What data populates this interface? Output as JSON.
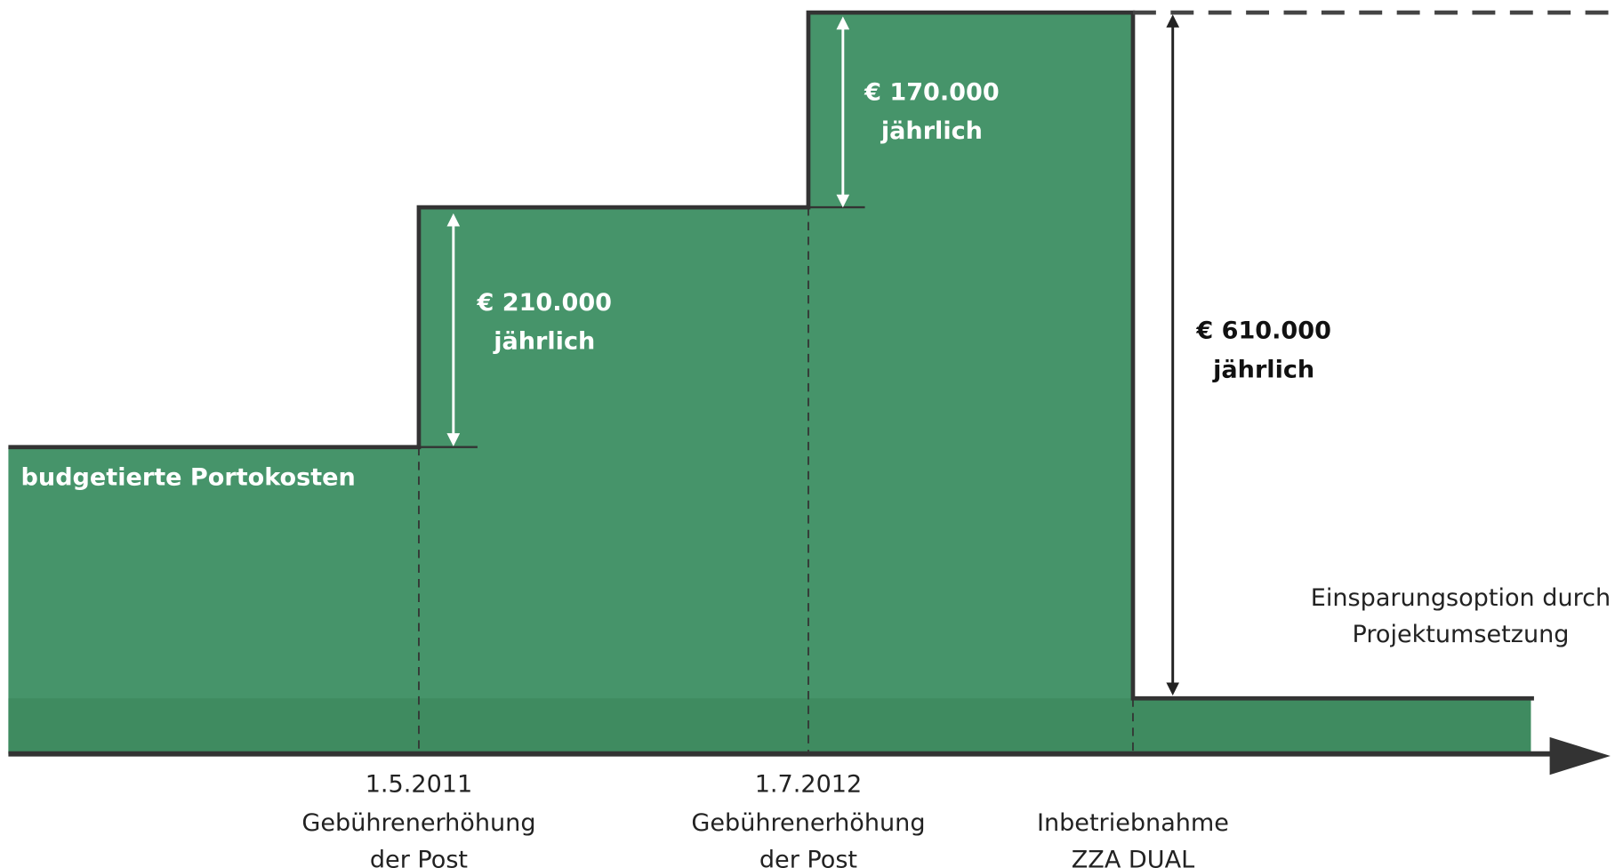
{
  "steps": {
    "base": {
      "label": "budgetierte Portokosten"
    },
    "increase_1": {
      "amount": "€ 210.000",
      "period": "jährlich"
    },
    "increase_2": {
      "amount": "€ 170.000",
      "period": "jährlich"
    },
    "total": {
      "amount": "€ 610.000",
      "period": "jährlich"
    },
    "savings": {
      "lines": [
        "Einsparungsoption durch",
        "Projektumsetzung"
      ]
    }
  },
  "milestones": [
    {
      "lines": [
        "1.5.2011",
        "Gebührenerhöhung",
        "der Post"
      ]
    },
    {
      "lines": [
        "1.7.2012",
        "Gebührenerhöhung",
        "der Post"
      ]
    },
    {
      "lines": [
        "Inbetriebnahme",
        "ZZA DUAL"
      ]
    }
  ]
}
